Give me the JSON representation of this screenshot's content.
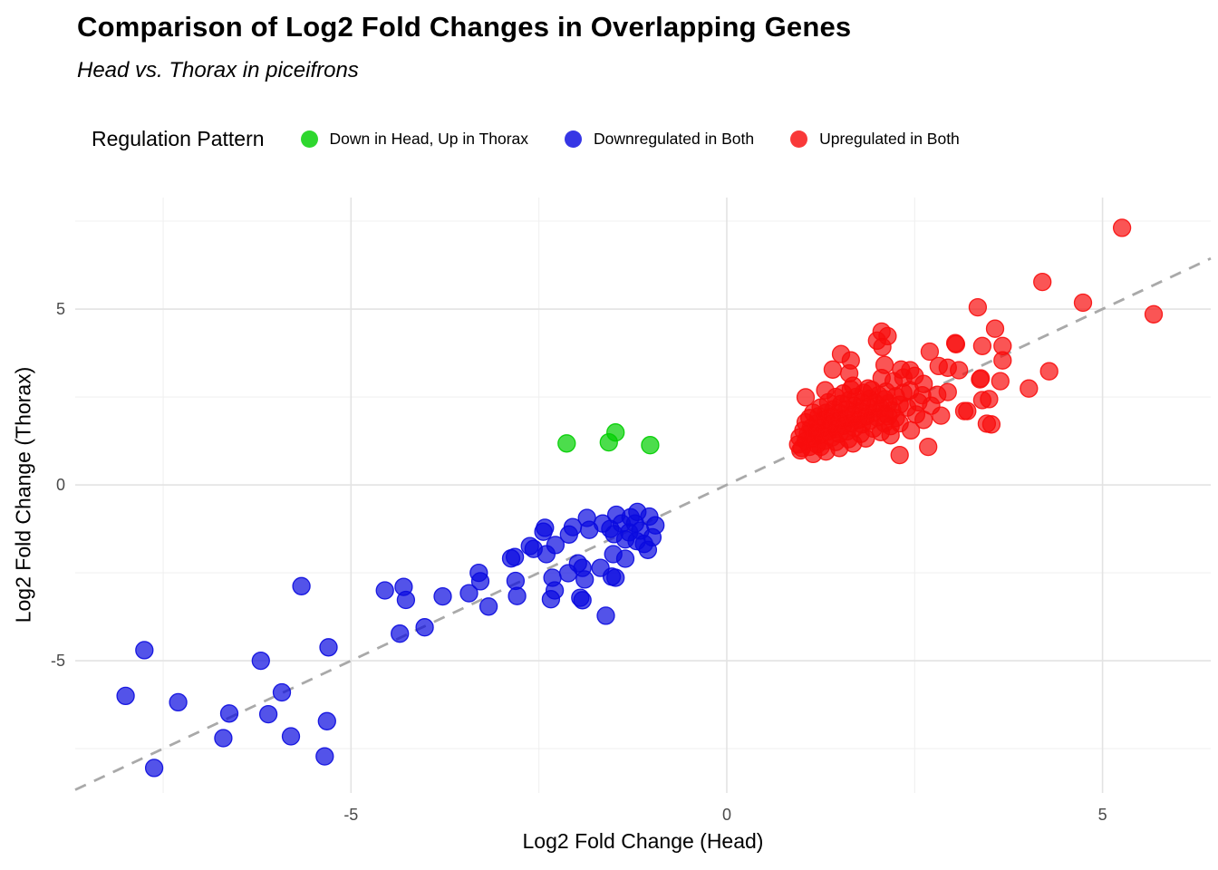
{
  "header": {
    "title": "Comparison of Log2 Fold Changes in Overlapping Genes",
    "subtitle": "Head vs. Thorax in piceifrons"
  },
  "legend": {
    "title": "Regulation Pattern",
    "items": [
      {
        "label": "Down in Head, Up in Thorax",
        "color": "#00CE00"
      },
      {
        "label": "Downregulated in Both",
        "color": "#0A0ADF"
      },
      {
        "label": "Upregulated in Both",
        "color": "#F80D0D"
      }
    ]
  },
  "chart_data": {
    "type": "scatter",
    "title": "Comparison of Log2 Fold Changes in Overlapping Genes",
    "subtitle": "Head vs. Thorax in piceifrons",
    "xlabel": "Log2 Fold Change (Head)",
    "ylabel": "Log2 Fold Change (Thorax)",
    "xlim": [
      -8.67,
      6.44
    ],
    "ylim": [
      -8.76,
      8.17
    ],
    "x_ticks": [
      -5,
      0,
      5
    ],
    "y_ticks": [
      -5,
      0,
      5
    ],
    "x_minor": [
      -7.5,
      -2.5,
      2.5
    ],
    "y_minor": [
      -7.5,
      -2.5,
      2.5,
      7.5
    ],
    "grid": true,
    "legend_position": "top",
    "background": "#ffffff",
    "major_grid_color": "#e3e3e3",
    "minor_grid_color": "#f0f0f0",
    "tick_label_color": "#4a4a4a",
    "reference_line": {
      "equation": "y = x",
      "style": "dashed",
      "color": "#a9a9a9"
    },
    "point_style": {
      "radius": 9.5,
      "fill_opacity": 0.7,
      "stroke_opacity": 0.9,
      "stroke_width": 1.3
    },
    "series": [
      {
        "name": "Down in Head, Up in Thorax",
        "color": "#00CE00",
        "points": [
          [
            -2.13,
            1.18
          ],
          [
            -1.57,
            1.21
          ],
          [
            -1.48,
            1.49
          ],
          [
            -1.02,
            1.13
          ]
        ]
      },
      {
        "name": "Downregulated in Both",
        "color": "#0A0ADF",
        "points": [
          [
            -8.0,
            -6.0
          ],
          [
            -7.75,
            -4.7
          ],
          [
            -7.62,
            -8.05
          ],
          [
            -7.3,
            -6.18
          ],
          [
            -6.62,
            -6.5
          ],
          [
            -6.7,
            -7.2
          ],
          [
            -6.2,
            -5.0
          ],
          [
            -6.1,
            -6.52
          ],
          [
            -5.92,
            -5.9
          ],
          [
            -5.8,
            -7.15
          ],
          [
            -5.3,
            -4.62
          ],
          [
            -5.32,
            -6.72
          ],
          [
            -5.35,
            -7.72
          ],
          [
            -5.66,
            -2.88
          ],
          [
            -4.55,
            -3.0
          ],
          [
            -4.3,
            -2.9
          ],
          [
            -4.27,
            -3.27
          ],
          [
            -4.35,
            -4.23
          ],
          [
            -4.02,
            -4.05
          ],
          [
            -3.78,
            -3.17
          ],
          [
            -3.43,
            -3.08
          ],
          [
            -3.3,
            -2.5
          ],
          [
            -3.28,
            -2.74
          ],
          [
            -3.17,
            -3.46
          ],
          [
            -2.87,
            -2.09
          ],
          [
            -2.81,
            -2.73
          ],
          [
            -2.79,
            -3.16
          ],
          [
            -2.62,
            -1.74
          ],
          [
            -2.57,
            -1.82
          ],
          [
            -2.44,
            -1.33
          ],
          [
            -2.42,
            -1.22
          ],
          [
            -2.82,
            -2.05
          ],
          [
            -2.4,
            -1.97
          ],
          [
            -2.28,
            -1.71
          ],
          [
            -2.1,
            -1.41
          ],
          [
            -2.05,
            -1.2
          ],
          [
            -1.98,
            -2.23
          ],
          [
            -2.11,
            -2.51
          ],
          [
            -2.32,
            -2.64
          ],
          [
            -2.29,
            -3.0
          ],
          [
            -2.34,
            -3.25
          ],
          [
            -1.92,
            -2.36
          ],
          [
            -1.89,
            -2.69
          ],
          [
            -1.95,
            -3.21
          ],
          [
            -1.68,
            -2.36
          ],
          [
            -1.53,
            -2.61
          ],
          [
            -1.86,
            -0.94
          ],
          [
            -1.83,
            -1.28
          ],
          [
            -1.51,
            -1.97
          ],
          [
            -1.35,
            -2.1
          ],
          [
            -1.48,
            -2.64
          ],
          [
            -1.61,
            -3.72
          ],
          [
            -1.92,
            -3.28
          ],
          [
            -1.47,
            -0.85
          ],
          [
            -1.19,
            -0.77
          ],
          [
            -1.03,
            -0.9
          ],
          [
            -0.95,
            -1.15
          ],
          [
            -0.99,
            -1.49
          ],
          [
            -1.05,
            -1.85
          ],
          [
            -1.65,
            -1.1
          ],
          [
            -1.55,
            -1.25
          ],
          [
            -1.4,
            -1.1
          ],
          [
            -1.3,
            -1.35
          ],
          [
            -1.22,
            -1.1
          ],
          [
            -1.15,
            -1.3
          ],
          [
            -1.35,
            -1.55
          ],
          [
            -1.2,
            -1.6
          ],
          [
            -1.1,
            -1.68
          ],
          [
            -1.5,
            -1.4
          ],
          [
            -1.28,
            -0.92
          ]
        ]
      },
      {
        "name": "Upregulated in Both",
        "color": "#F80D0D",
        "points": [
          [
            5.26,
            7.31
          ],
          [
            4.2,
            5.77
          ],
          [
            4.74,
            5.18
          ],
          [
            5.68,
            4.85
          ],
          [
            3.34,
            5.05
          ],
          [
            3.57,
            4.44
          ],
          [
            3.05,
            4.0
          ],
          [
            3.4,
            3.95
          ],
          [
            3.67,
            3.95
          ],
          [
            3.67,
            3.54
          ],
          [
            3.64,
            2.95
          ],
          [
            3.38,
            3.03
          ],
          [
            4.29,
            3.23
          ],
          [
            4.02,
            2.74
          ],
          [
            3.4,
            2.41
          ],
          [
            3.2,
            2.1
          ],
          [
            3.46,
            1.74
          ],
          [
            2.14,
            4.23
          ],
          [
            2.07,
            3.92
          ],
          [
            2.0,
            4.1
          ],
          [
            2.06,
            4.36
          ],
          [
            3.04,
            4.03
          ],
          [
            1.52,
            3.72
          ],
          [
            1.65,
            3.54
          ],
          [
            1.41,
            3.28
          ],
          [
            1.63,
            3.17
          ],
          [
            2.06,
            3.04
          ],
          [
            2.1,
            3.41
          ],
          [
            2.32,
            3.28
          ],
          [
            2.44,
            3.26
          ],
          [
            2.7,
            3.79
          ],
          [
            2.82,
            3.38
          ],
          [
            2.94,
            3.33
          ],
          [
            3.09,
            3.26
          ],
          [
            3.37,
            3.0
          ],
          [
            1.31,
            2.69
          ],
          [
            1.68,
            2.82
          ],
          [
            1.88,
            2.74
          ],
          [
            2.1,
            2.44
          ],
          [
            2.44,
            2.69
          ],
          [
            2.62,
            2.87
          ],
          [
            2.8,
            2.56
          ],
          [
            2.94,
            2.64
          ],
          [
            3.16,
            2.1
          ],
          [
            3.49,
            2.44
          ],
          [
            3.52,
            1.72
          ],
          [
            2.85,
            1.97
          ],
          [
            2.18,
            1.67
          ],
          [
            2.18,
            1.41
          ],
          [
            2.68,
            1.08
          ],
          [
            1.05,
            2.49
          ],
          [
            2.22,
            2.95
          ],
          [
            2.35,
            3.05
          ],
          [
            2.5,
            3.1
          ],
          [
            2.55,
            2.35
          ],
          [
            2.4,
            2.2
          ],
          [
            2.52,
            2.0
          ],
          [
            2.15,
            1.95
          ],
          [
            2.3,
            1.75
          ],
          [
            2.45,
            1.55
          ],
          [
            2.6,
            2.55
          ],
          [
            2.72,
            2.25
          ],
          [
            2.62,
            1.85
          ],
          [
            0.95,
            1.15
          ],
          [
            0.97,
            1.35
          ],
          [
            1.0,
            1.05
          ],
          [
            1.02,
            1.55
          ],
          [
            1.05,
            1.25
          ],
          [
            1.05,
            1.78
          ],
          [
            1.08,
            1.45
          ],
          [
            1.1,
            1.08
          ],
          [
            1.1,
            1.9
          ],
          [
            1.12,
            1.62
          ],
          [
            1.15,
            1.32
          ],
          [
            1.15,
            2.05
          ],
          [
            1.18,
            1.5
          ],
          [
            1.2,
            1.15
          ],
          [
            1.2,
            1.75
          ],
          [
            1.22,
            1.95
          ],
          [
            1.25,
            1.42
          ],
          [
            1.25,
            2.2
          ],
          [
            1.28,
            1.62
          ],
          [
            1.3,
            1.25
          ],
          [
            1.3,
            1.85
          ],
          [
            1.32,
            2.05
          ],
          [
            1.35,
            1.52
          ],
          [
            1.35,
            2.35
          ],
          [
            1.38,
            1.72
          ],
          [
            1.4,
            1.35
          ],
          [
            1.4,
            1.95
          ],
          [
            1.42,
            2.15
          ],
          [
            1.45,
            1.58
          ],
          [
            1.45,
            2.5
          ],
          [
            1.48,
            1.82
          ],
          [
            1.5,
            1.45
          ],
          [
            1.5,
            2.05
          ],
          [
            1.52,
            2.3
          ],
          [
            1.55,
            1.68
          ],
          [
            1.55,
            2.6
          ],
          [
            1.58,
            1.9
          ],
          [
            1.6,
            1.52
          ],
          [
            1.6,
            2.15
          ],
          [
            1.62,
            2.4
          ],
          [
            1.65,
            1.75
          ],
          [
            1.65,
            2.72
          ],
          [
            1.68,
            2.0
          ],
          [
            1.7,
            1.62
          ],
          [
            1.7,
            2.25
          ],
          [
            1.72,
            2.5
          ],
          [
            1.75,
            1.85
          ],
          [
            1.78,
            2.1
          ],
          [
            1.8,
            1.72
          ],
          [
            1.8,
            2.35
          ],
          [
            1.82,
            2.62
          ],
          [
            1.85,
            1.95
          ],
          [
            1.88,
            2.22
          ],
          [
            1.9,
            1.82
          ],
          [
            1.9,
            2.45
          ],
          [
            1.93,
            2.7
          ],
          [
            1.95,
            2.05
          ],
          [
            1.98,
            2.32
          ],
          [
            2.0,
            1.92
          ],
          [
            2.02,
            2.55
          ],
          [
            2.05,
            2.18
          ],
          [
            2.1,
            2.02
          ],
          [
            2.12,
            2.65
          ],
          [
            2.15,
            2.32
          ],
          [
            2.2,
            2.12
          ],
          [
            2.25,
            2.52
          ],
          [
            2.3,
            2.28
          ],
          [
            2.35,
            2.62
          ],
          [
            1.25,
            1.08
          ],
          [
            1.45,
            1.22
          ],
          [
            1.62,
            1.3
          ],
          [
            1.78,
            1.45
          ],
          [
            1.95,
            1.6
          ],
          [
            2.1,
            1.75
          ],
          [
            2.25,
            1.9
          ],
          [
            1.32,
            0.95
          ],
          [
            1.5,
            1.05
          ],
          [
            1.68,
            1.18
          ],
          [
            1.85,
            1.32
          ],
          [
            2.05,
            1.5
          ],
          [
            2.3,
            0.85
          ],
          [
            1.15,
            0.88
          ],
          [
            0.98,
            0.98
          ]
        ]
      }
    ]
  }
}
